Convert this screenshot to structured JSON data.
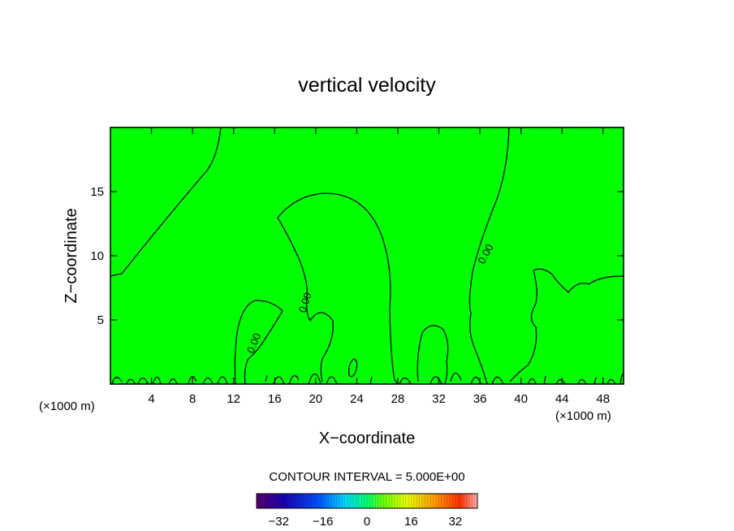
{
  "chart_data": {
    "type": "contour",
    "title": "vertical velocity",
    "xlabel": "X−coordinate",
    "ylabel": "Z−coordinate",
    "x_unit_left": "(×1000 m)",
    "x_unit_right": "(×1000 m)",
    "xlim": [
      0,
      50
    ],
    "ylim": [
      0,
      20
    ],
    "x_ticks": [
      4,
      8,
      12,
      16,
      20,
      24,
      28,
      32,
      36,
      40,
      44,
      48
    ],
    "y_ticks": [
      5,
      10,
      15
    ],
    "field_color": "#00ff00",
    "contour_color": "#000000",
    "contour_labels": [
      "0.00",
      "0.00",
      "0.00"
    ],
    "contour_interval_text": "CONTOUR INTERVAL =  5.000E+00",
    "colorbar": {
      "range": [
        -40,
        40
      ],
      "tick_values": [
        -32,
        -16,
        0,
        16,
        32
      ],
      "tick_labels": [
        "−32",
        "−16",
        "0",
        "16",
        "32"
      ]
    }
  }
}
